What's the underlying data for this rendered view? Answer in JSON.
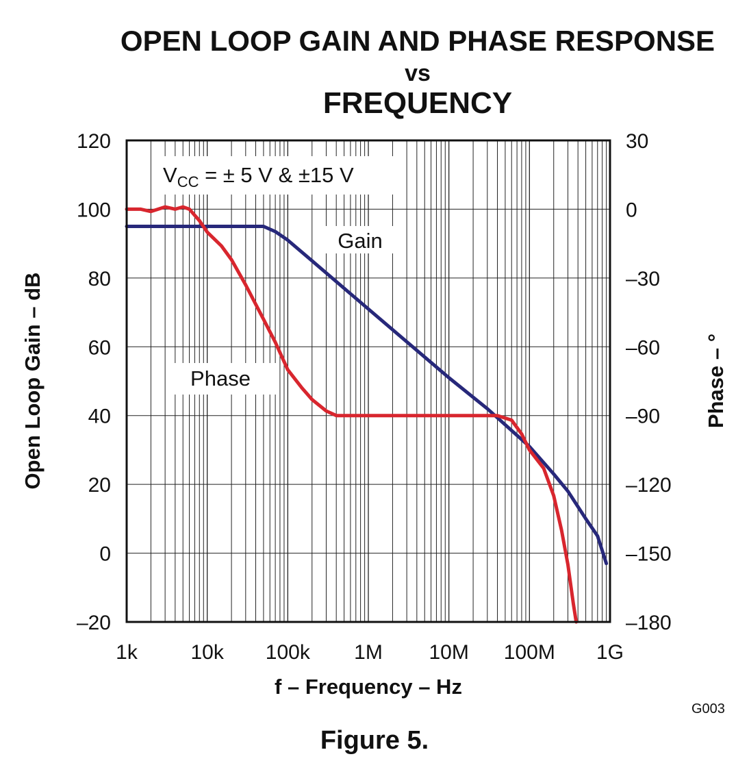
{
  "chart_data": {
    "type": "line",
    "title": [
      "OPEN LOOP GAIN AND PHASE RESPONSE",
      "vs",
      "FREQUENCY"
    ],
    "xlabel": "f – Frequency – Hz",
    "ylabel": "Open Loop Gain – dB",
    "ylabel_right": "Phase – °",
    "x_scale": "log",
    "xlim": [
      1000,
      1000000000
    ],
    "ylim": [
      -20,
      120
    ],
    "ylim_right": [
      -180,
      30
    ],
    "x_ticks": [
      {
        "value": 1000,
        "label": "1k"
      },
      {
        "value": 10000,
        "label": "10k"
      },
      {
        "value": 100000,
        "label": "100k"
      },
      {
        "value": 1000000,
        "label": "1M"
      },
      {
        "value": 10000000,
        "label": "10M"
      },
      {
        "value": 100000000,
        "label": "100M"
      },
      {
        "value": 1000000000,
        "label": "1G"
      }
    ],
    "y_ticks": [
      {
        "value": 120,
        "label": "120"
      },
      {
        "value": 100,
        "label": "100"
      },
      {
        "value": 80,
        "label": "80"
      },
      {
        "value": 60,
        "label": "60"
      },
      {
        "value": 40,
        "label": "40"
      },
      {
        "value": 20,
        "label": "20"
      },
      {
        "value": 0,
        "label": "0"
      },
      {
        "value": -20,
        "label": "–20"
      }
    ],
    "y_ticks_right": [
      {
        "value": 30,
        "label": "30"
      },
      {
        "value": 0,
        "label": "0"
      },
      {
        "value": -30,
        "label": "–30"
      },
      {
        "value": -60,
        "label": "–60"
      },
      {
        "value": -90,
        "label": "–90"
      },
      {
        "value": -120,
        "label": "–120"
      },
      {
        "value": -150,
        "label": "–150"
      },
      {
        "value": -180,
        "label": "–180"
      }
    ],
    "grid": true,
    "annotations": [
      {
        "text_main": "V",
        "text_sub": "CC",
        "text_rest": " = ± 5 V & ±15 V"
      }
    ],
    "series": [
      {
        "name": "Gain",
        "axis": "left",
        "color": "#27287a",
        "points": [
          [
            1000,
            95
          ],
          [
            50000,
            95
          ],
          [
            70000,
            93.5
          ],
          [
            100000,
            91
          ],
          [
            200000,
            85
          ],
          [
            500000,
            77
          ],
          [
            1000000,
            71
          ],
          [
            10000000,
            51
          ],
          [
            30000000,
            42
          ],
          [
            100000000,
            31
          ],
          [
            200000000,
            23
          ],
          [
            300000000,
            18
          ],
          [
            500000000,
            10
          ],
          [
            700000000,
            5
          ],
          [
            900000000,
            -3
          ]
        ]
      },
      {
        "name": "Phase",
        "axis": "right",
        "color": "#d8262e",
        "points": [
          [
            1000,
            0
          ],
          [
            1500,
            0
          ],
          [
            2000,
            -1
          ],
          [
            3000,
            1
          ],
          [
            4000,
            0
          ],
          [
            5000,
            1
          ],
          [
            6000,
            0
          ],
          [
            8000,
            -5
          ],
          [
            10000,
            -10
          ],
          [
            15000,
            -16
          ],
          [
            20000,
            -22
          ],
          [
            30000,
            -33
          ],
          [
            50000,
            -48
          ],
          [
            70000,
            -58
          ],
          [
            100000,
            -70
          ],
          [
            150000,
            -78
          ],
          [
            200000,
            -83
          ],
          [
            300000,
            -88
          ],
          [
            400000,
            -90
          ],
          [
            1000000,
            -90
          ],
          [
            10000000,
            -90
          ],
          [
            40000000,
            -90
          ],
          [
            60000000,
            -92
          ],
          [
            80000000,
            -98
          ],
          [
            100000000,
            -105
          ],
          [
            150000000,
            -113
          ],
          [
            200000000,
            -125
          ],
          [
            250000000,
            -140
          ],
          [
            300000000,
            -155
          ],
          [
            350000000,
            -172
          ],
          [
            380000000,
            -180
          ]
        ]
      }
    ]
  },
  "figure_caption": "Figure 5.",
  "figure_code": "G003"
}
